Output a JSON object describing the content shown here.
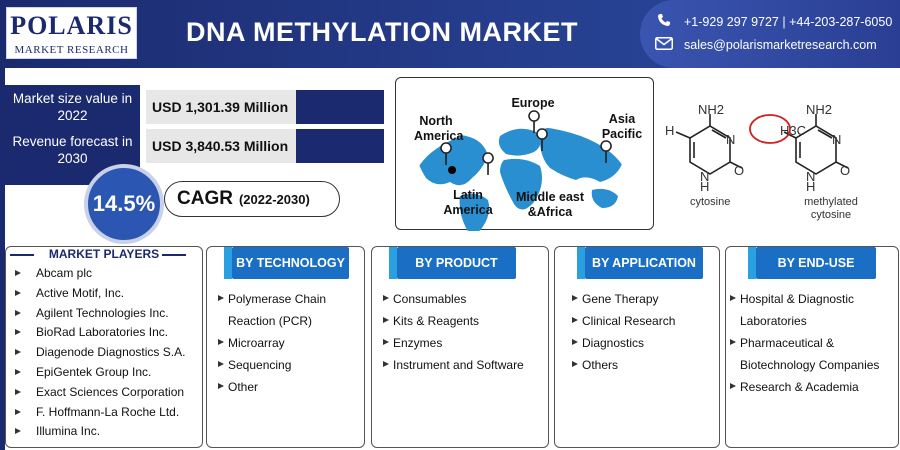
{
  "header": {
    "logo_name": "POLARIS",
    "logo_tagline": "MARKET RESEARCH",
    "title": "DNA METHYLATION MARKET",
    "phone": "+1-929 297 9727  |  +44-203-287-6050",
    "email": "sales@polarismarketresearch.com"
  },
  "metrics": {
    "size_label": "Market size value in 2022",
    "size_value": "USD 1,301.39 Million",
    "forecast_label": "Revenue forecast in 2030",
    "forecast_value": "USD 3,840.53 Million",
    "cagr_value": "14.5%",
    "cagr_label": "CAGR",
    "cagr_period": "(2022-2030)"
  },
  "map": {
    "regions": [
      "North America",
      "Europe",
      "Asia Pacific",
      "Latin America",
      "Middle east &Africa"
    ]
  },
  "molecules": {
    "cytosine_label": "cytosine",
    "methylated_label": "methylated cytosine",
    "nh2": "NH2",
    "h3c": "H3C",
    "n": "N",
    "o": "O",
    "h": "H"
  },
  "market_players": {
    "title": "MARKET PLAYERS",
    "items": [
      "Abcam plc",
      "Active Motif, Inc.",
      "Agilent Technologies Inc.",
      "BioRad Laboratories Inc.",
      "Diagenode Diagnostics S.A.",
      "EpiGentek Group Inc.",
      "Exact Sciences Corporation",
      "F. Hoffmann-La Roche Ltd.",
      "Illumina Inc."
    ]
  },
  "segments": [
    {
      "title": "BY TECHNOLOGY",
      "items": [
        "Polymerase Chain Reaction (PCR)",
        "Microarray",
        "Sequencing",
        "Other"
      ]
    },
    {
      "title": "BY PRODUCT",
      "items": [
        "Consumables",
        "Kits & Reagents",
        "Enzymes",
        "Instrument and Software"
      ]
    },
    {
      "title": "BY APPLICATION",
      "items": [
        "Gene Therapy",
        "Clinical Research",
        "Diagnostics",
        "Others"
      ]
    },
    {
      "title": "BY END-USE",
      "items": [
        "Hospital & Diagnostic Laboratories",
        "Pharmaceutical & Biotechnology Companies",
        "Research & Academia"
      ]
    }
  ],
  "colors": {
    "navy": "#1b2a6e",
    "tab_blue": "#1a6fc4",
    "accent_blue": "#2aa0e0",
    "map_blue": "#2a8fd0",
    "methyl_circle": "#d22020"
  }
}
